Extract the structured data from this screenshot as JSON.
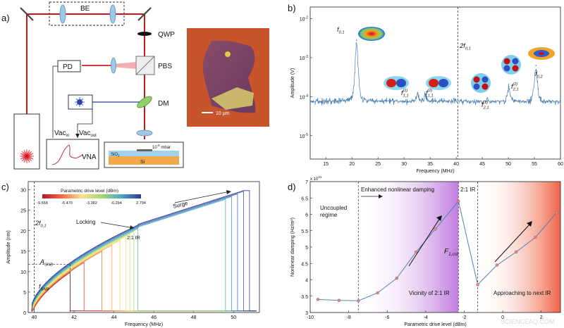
{
  "panel_a": {
    "label": "a)",
    "be": "BE",
    "qwp": "QWP",
    "pbs": "PBS",
    "dm": "DM",
    "pd": "PD",
    "vna": "VNA",
    "vac_in": "Vac",
    "vac_in_sub": "in",
    "vac_out": "Vac",
    "vac_out_sub": "out",
    "vacuum": "10",
    "vacuum_exp": "-5",
    "vacuum_unit": " mbar",
    "sio2": "SiO",
    "sio2_sub": "2",
    "si": "Si",
    "scale": "10 µm"
  },
  "chart_b": {
    "label": "b)",
    "type": "line",
    "xlabel": "Frequency (MHz)",
    "ylabel": "Amplitude (V)",
    "xlim": [
      12,
      60
    ],
    "x_ticks": [
      15,
      20,
      25,
      30,
      35,
      40,
      45,
      50,
      55,
      60
    ],
    "y_ticks": [
      {
        "base": "10",
        "exp": "-5",
        "value": -5
      },
      {
        "base": "10",
        "exp": "-4",
        "value": -4
      },
      {
        "base": "10",
        "exp": "-3",
        "value": -3
      },
      {
        "base": "10",
        "exp": "-2",
        "value": -2
      }
    ],
    "ylim_log10": [
      -5.6,
      -1.7
    ],
    "noise_floor_log10": -4.2,
    "peaks": [
      {
        "label": "f",
        "sub": "0,1",
        "sup": "",
        "x": 20.9,
        "log10": -2.55
      },
      {
        "label": "f",
        "sub": "1,1",
        "sup": "(1)",
        "x": 32.6,
        "log10": -3.9
      },
      {
        "label": "f",
        "sub": "1,1",
        "sup": "(2)",
        "x": 34.1,
        "log10": -3.95
      },
      {
        "label": "f",
        "sub": "2,1",
        "sup": "(1)",
        "x": 46.1,
        "log10": -4.1
      },
      {
        "label": "f",
        "sub": "2,1",
        "sup": "(2)",
        "x": 50.1,
        "log10": -3.75
      },
      {
        "label": "f",
        "sub": "0,2",
        "sup": "",
        "x": 55.3,
        "log10": -3.2
      }
    ],
    "dashed_line": {
      "x": 40.3,
      "label": "2f",
      "sub": "0,1"
    }
  },
  "chart_c": {
    "label": "c)",
    "type": "line",
    "xlabel": "Frequency (MHz)",
    "ylabel": "Amplitude (nm)",
    "xlim": [
      39.7,
      51.3
    ],
    "ylim": [
      0,
      32
    ],
    "x_ticks": [
      40,
      42,
      44,
      46,
      48,
      50
    ],
    "y_ticks": [
      0,
      5,
      10,
      15,
      20,
      25,
      30
    ],
    "colorbar_title": "Parametric drive level (dBm)",
    "colorbar_ticks": [
      "-9.558",
      "-6.470",
      "-3.382",
      "-0.294",
      "2.794"
    ],
    "series_drops": [
      41.8,
      42.5,
      43.4,
      43.9,
      44.3,
      44.6,
      44.8,
      45.0,
      45.2,
      49.6,
      49.9,
      50.2,
      50.5,
      50.8
    ],
    "annotations": {
      "two_f": "2f",
      "two_f_sub": "0,1",
      "locking": "Locking",
      "surge": "Surge",
      "ir": "2:1 IR",
      "asnb": "A",
      "asnb_sub": "SNB",
      "fsnb": "f",
      "fsnb_sub": "SNB"
    },
    "snb_point": {
      "x": 41.8,
      "y": 11.8
    }
  },
  "chart_d": {
    "label": "d)",
    "type": "line",
    "xlabel": "Parametric drive level (dBm)",
    "ylabel": "Nonlinear damping (Hz/m²)",
    "exponent": "x 10",
    "exponent_sup": "21",
    "xlim": [
      -10,
      3
    ],
    "ylim": [
      3,
      7
    ],
    "x_ticks": [
      -10,
      -8,
      -6,
      -4,
      -2,
      0,
      2
    ],
    "y_ticks": [
      3,
      3.5,
      4,
      4.5,
      5,
      5.5,
      6,
      6.5,
      7
    ],
    "x": [
      -9.6,
      -8.5,
      -7.5,
      -6.5,
      -5.5,
      -4.5,
      -3.5,
      -2.3,
      -1.3,
      -0.3,
      0.7,
      1.7,
      2.8
    ],
    "y": [
      3.4,
      3.37,
      3.36,
      3.6,
      4.05,
      4.85,
      5.55,
      6.4,
      3.85,
      4.45,
      4.85,
      5.3,
      6.05
    ],
    "dashed_x": [
      -7.5,
      -2.3,
      -1.3
    ],
    "region_labels": {
      "uncoupled_1": "Uncoupled",
      "uncoupled_2": "regime",
      "enhanced": "Enhanced nonlinear damping",
      "ir": "2:1 IR",
      "vicinity": "Vicinity of 2:1 IR",
      "approach": "Approaching to next IR",
      "fcrit": "F",
      "fcrit_sub": "1,crit"
    }
  },
  "watermark": "SCIENCEAQ.COM"
}
